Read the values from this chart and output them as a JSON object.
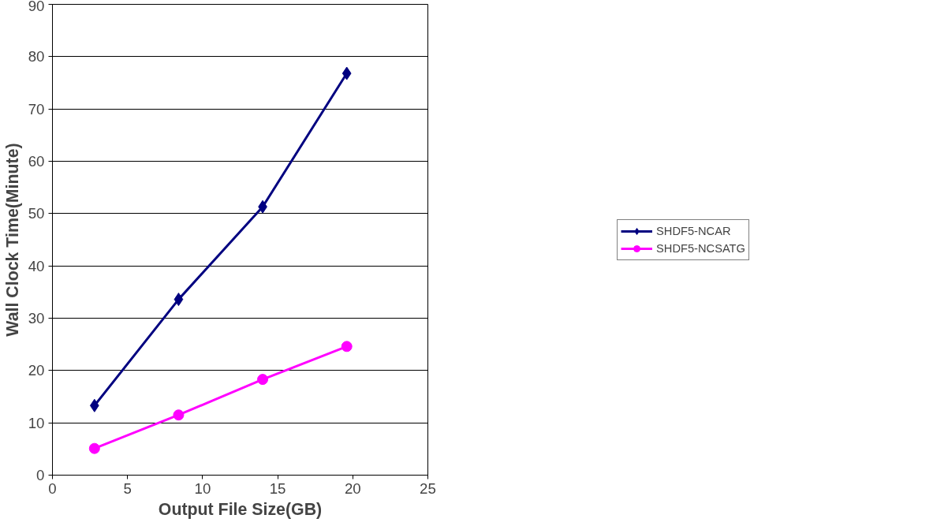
{
  "chart_data": {
    "type": "line",
    "xlabel": "Output File Size(GB)",
    "ylabel": "Wall Clock Time(Minute)",
    "x": [
      2.8,
      8.4,
      14.0,
      19.6
    ],
    "series": [
      {
        "name": "SHDF5-NCAR",
        "color": "#000080",
        "marker": "diamond",
        "values": [
          13.3,
          33.6,
          51.3,
          76.8
        ]
      },
      {
        "name": "SHDF5-NCSATG",
        "color": "#ff00ff",
        "marker": "circle",
        "values": [
          5.1,
          11.5,
          18.3,
          24.6
        ]
      }
    ],
    "xlim": [
      0,
      25
    ],
    "xticks": [
      0,
      5,
      10,
      15,
      20,
      25
    ],
    "ylim": [
      0,
      90
    ],
    "yticks": [
      0,
      10,
      20,
      30,
      40,
      50,
      60,
      70,
      80,
      90
    ],
    "grid": "y",
    "legend": "right",
    "line_style": "solid"
  }
}
